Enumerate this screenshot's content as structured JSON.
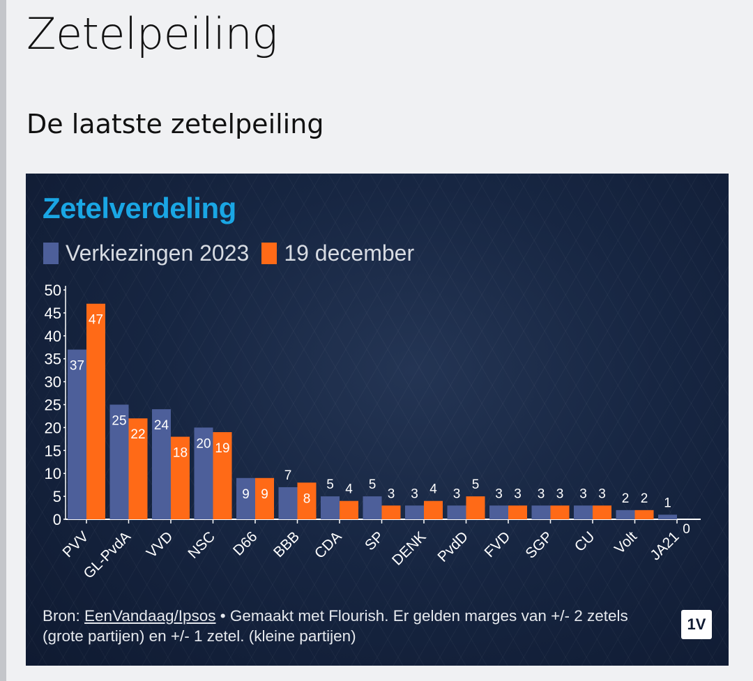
{
  "page": {
    "title": "Zetelpeiling",
    "section_title": "De laatste zetelpeiling"
  },
  "chart_card": {
    "footer_prefix": "Bron: ",
    "source_link": "EenVandaag/Ipsos",
    "footer_rest": " • Gemaakt met Flourish. Er gelden marges van +/- 2 zetels (grote partijen) en +/- 1 zetel. (kleine partijen)",
    "logo_text": "1V"
  },
  "colors": {
    "series_2023": "#4d5f9a",
    "series_dec": "#ff6a17",
    "heading": "#1aa6e4"
  },
  "chart_data": {
    "type": "bar",
    "title": "Zetelverdeling",
    "categories": [
      "PVV",
      "GL-PvdA",
      "VVD",
      "NSC",
      "D66",
      "BBB",
      "CDA",
      "SP",
      "DENK",
      "PvdD",
      "FVD",
      "SGP",
      "CU",
      "Volt",
      "JA21"
    ],
    "series": [
      {
        "name": "Verkiezingen 2023",
        "color": "#4d5f9a",
        "values": [
          37,
          25,
          24,
          20,
          9,
          7,
          5,
          5,
          3,
          3,
          3,
          3,
          3,
          2,
          1
        ]
      },
      {
        "name": "19 december",
        "color": "#ff6a17",
        "values": [
          47,
          22,
          18,
          19,
          9,
          8,
          4,
          3,
          4,
          5,
          3,
          3,
          3,
          2,
          0
        ]
      }
    ],
    "yticks": [
      0,
      5,
      10,
      15,
      20,
      25,
      30,
      35,
      40,
      45,
      50
    ],
    "ylim": [
      0,
      50
    ],
    "xlabel": "",
    "ylabel": "",
    "legend_position": "top-left",
    "grid": false
  }
}
